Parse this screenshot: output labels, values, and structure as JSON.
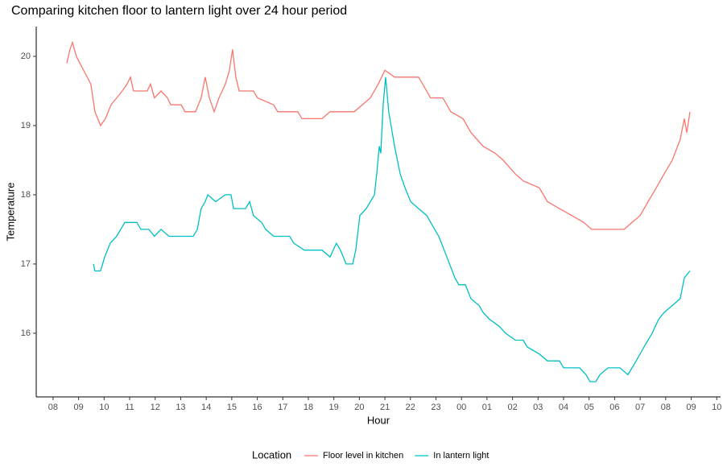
{
  "chart_data": {
    "type": "line",
    "title": "Comparing kitchen floor to lantern light over 24 hour period",
    "x_label": "Hour",
    "y_label": "Temperature",
    "legend_title": "Location",
    "legend_position": "bottom",
    "grid": false,
    "xlim": [
      7.34,
      34.15
    ],
    "ylim": [
      15.08,
      20.43
    ],
    "xticks": [
      {
        "value": 8,
        "label": "08"
      },
      {
        "value": 9,
        "label": "09"
      },
      10,
      11,
      12,
      13,
      14,
      15,
      16,
      17,
      18,
      19,
      20,
      21,
      22,
      23,
      {
        "value": 24,
        "label": "00"
      },
      {
        "value": 25,
        "label": "01"
      },
      {
        "value": 26,
        "label": "02"
      },
      {
        "value": 27,
        "label": "03"
      },
      {
        "value": 28,
        "label": "04"
      },
      {
        "value": 29,
        "label": "05"
      },
      {
        "value": 30,
        "label": "06"
      },
      {
        "value": 31,
        "label": "07"
      },
      {
        "value": 32,
        "label": "08"
      },
      {
        "value": 33,
        "label": "09"
      },
      {
        "value": 34,
        "label": "10"
      }
    ],
    "yticks": [
      16,
      17,
      18,
      19,
      20
    ],
    "series": [
      {
        "name": "Floor level in kitchen",
        "color": "#F8766D",
        "x": [
          8.54,
          8.66,
          8.76,
          8.91,
          9.48,
          9.64,
          9.86,
          10.05,
          10.27,
          10.49,
          10.71,
          10.9,
          11.03,
          11.15,
          11.69,
          11.82,
          11.97,
          12.23,
          12.48,
          12.61,
          13.02,
          13.17,
          13.58,
          13.8,
          13.96,
          14.12,
          14.31,
          14.5,
          14.75,
          14.91,
          15.03,
          15.16,
          15.29,
          15.85,
          16.01,
          16.64,
          16.8,
          17.59,
          17.75,
          18.54,
          18.85,
          19.8,
          20.43,
          20.74,
          21,
          21.38,
          22.32,
          22.48,
          22.79,
          23.27,
          23.58,
          24.06,
          24.37,
          24.85,
          25.32,
          25.63,
          26.11,
          26.42,
          27.05,
          27.37,
          27.84,
          28.32,
          28.79,
          29.1,
          29.89,
          30.37,
          30.68,
          31,
          31.31,
          31.63,
          31.94,
          32.26,
          32.57,
          32.73,
          32.83,
          32.95
        ],
        "values": [
          19.9,
          20.1,
          20.2,
          20.0,
          19.6,
          19.2,
          19.0,
          19.1,
          19.3,
          19.4,
          19.5,
          19.6,
          19.7,
          19.5,
          19.5,
          19.6,
          19.4,
          19.5,
          19.4,
          19.3,
          19.3,
          19.2,
          19.2,
          19.4,
          19.7,
          19.4,
          19.2,
          19.4,
          19.6,
          19.8,
          20.1,
          19.7,
          19.5,
          19.5,
          19.4,
          19.3,
          19.2,
          19.2,
          19.1,
          19.1,
          19.2,
          19.2,
          19.4,
          19.6,
          19.8,
          19.7,
          19.7,
          19.6,
          19.4,
          19.4,
          19.2,
          19.1,
          18.9,
          18.7,
          18.6,
          18.5,
          18.3,
          18.2,
          18.1,
          17.9,
          17.8,
          17.7,
          17.6,
          17.5,
          17.5,
          17.5,
          17.6,
          17.7,
          17.9,
          18.1,
          18.3,
          18.5,
          18.8,
          19.1,
          18.9,
          19.2
        ]
      },
      {
        "name": "In lantern light",
        "color": "#00BFC4",
        "x": [
          9.58,
          9.64,
          9.86,
          10.02,
          10.24,
          10.49,
          10.65,
          10.81,
          11.28,
          11.44,
          11.75,
          11.97,
          12.23,
          12.54,
          12.7,
          13.49,
          13.65,
          13.8,
          13.96,
          14.06,
          14.37,
          14.75,
          14.97,
          15.07,
          15.54,
          15.7,
          15.85,
          16.17,
          16.33,
          16.64,
          17.27,
          17.43,
          17.84,
          18.54,
          18.85,
          19.1,
          19.26,
          19.48,
          19.74,
          19.86,
          20.02,
          20.27,
          20.43,
          20.59,
          20.68,
          20.78,
          20.84,
          20.93,
          21.03,
          21.15,
          21.38,
          21.6,
          21.79,
          22.01,
          22.32,
          22.64,
          22.95,
          23.11,
          23.43,
          23.74,
          23.9,
          24.15,
          24.37,
          24.69,
          24.85,
          25.1,
          25.48,
          25.73,
          26.11,
          26.42,
          26.58,
          27.05,
          27.37,
          27.84,
          28,
          28.63,
          28.88,
          29.04,
          29.26,
          29.42,
          29.74,
          30.21,
          30.52,
          30.84,
          31.15,
          31.47,
          31.72,
          31.94,
          32.26,
          32.57,
          32.73,
          32.95
        ],
        "values": [
          17.0,
          16.9,
          16.9,
          17.1,
          17.3,
          17.4,
          17.5,
          17.6,
          17.6,
          17.5,
          17.5,
          17.4,
          17.5,
          17.4,
          17.4,
          17.4,
          17.5,
          17.8,
          17.9,
          18.0,
          17.9,
          18.0,
          18.0,
          17.8,
          17.8,
          17.9,
          17.7,
          17.6,
          17.5,
          17.4,
          17.4,
          17.3,
          17.2,
          17.2,
          17.1,
          17.3,
          17.2,
          17.0,
          17.0,
          17.2,
          17.7,
          17.8,
          17.9,
          18.0,
          18.3,
          18.7,
          18.6,
          19.3,
          19.7,
          19.2,
          18.7,
          18.3,
          18.1,
          17.9,
          17.8,
          17.7,
          17.5,
          17.4,
          17.1,
          16.8,
          16.7,
          16.7,
          16.5,
          16.4,
          16.3,
          16.2,
          16.1,
          16.0,
          15.9,
          15.9,
          15.8,
          15.7,
          15.6,
          15.6,
          15.5,
          15.5,
          15.4,
          15.3,
          15.3,
          15.4,
          15.5,
          15.5,
          15.4,
          15.6,
          15.8,
          16.0,
          16.2,
          16.3,
          16.4,
          16.5,
          16.8,
          16.9
        ]
      }
    ]
  }
}
